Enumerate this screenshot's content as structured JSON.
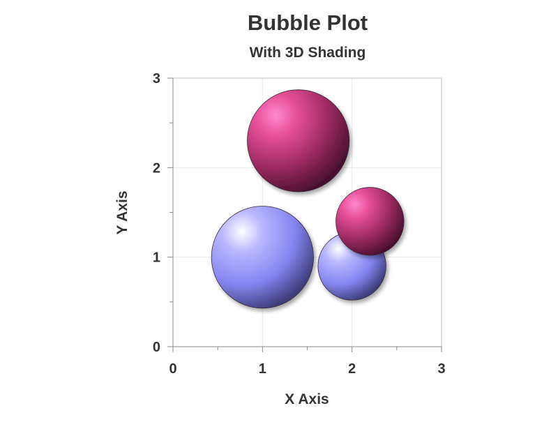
{
  "chart_data": {
    "type": "scatter",
    "subtype": "bubble",
    "title": "Bubble Plot",
    "subtitle": "With 3D Shading",
    "xlabel": "X Axis",
    "ylabel": "Y Axis",
    "xlim": [
      0,
      3
    ],
    "ylim": [
      0,
      3
    ],
    "xticks": [
      "0",
      "1",
      "2",
      "3"
    ],
    "yticks": [
      "0",
      "1",
      "2",
      "3"
    ],
    "grid": true,
    "legend": "none",
    "series": [
      {
        "color": "#8080ff",
        "points": [
          {
            "x": 1.0,
            "y": 1.0,
            "r": 0.57
          },
          {
            "x": 2.0,
            "y": 0.9,
            "r": 0.38
          }
        ]
      },
      {
        "color": "#a6205a",
        "points": [
          {
            "x": 1.4,
            "y": 2.3,
            "r": 0.57
          },
          {
            "x": 2.2,
            "y": 1.4,
            "r": 0.38
          }
        ]
      }
    ]
  }
}
